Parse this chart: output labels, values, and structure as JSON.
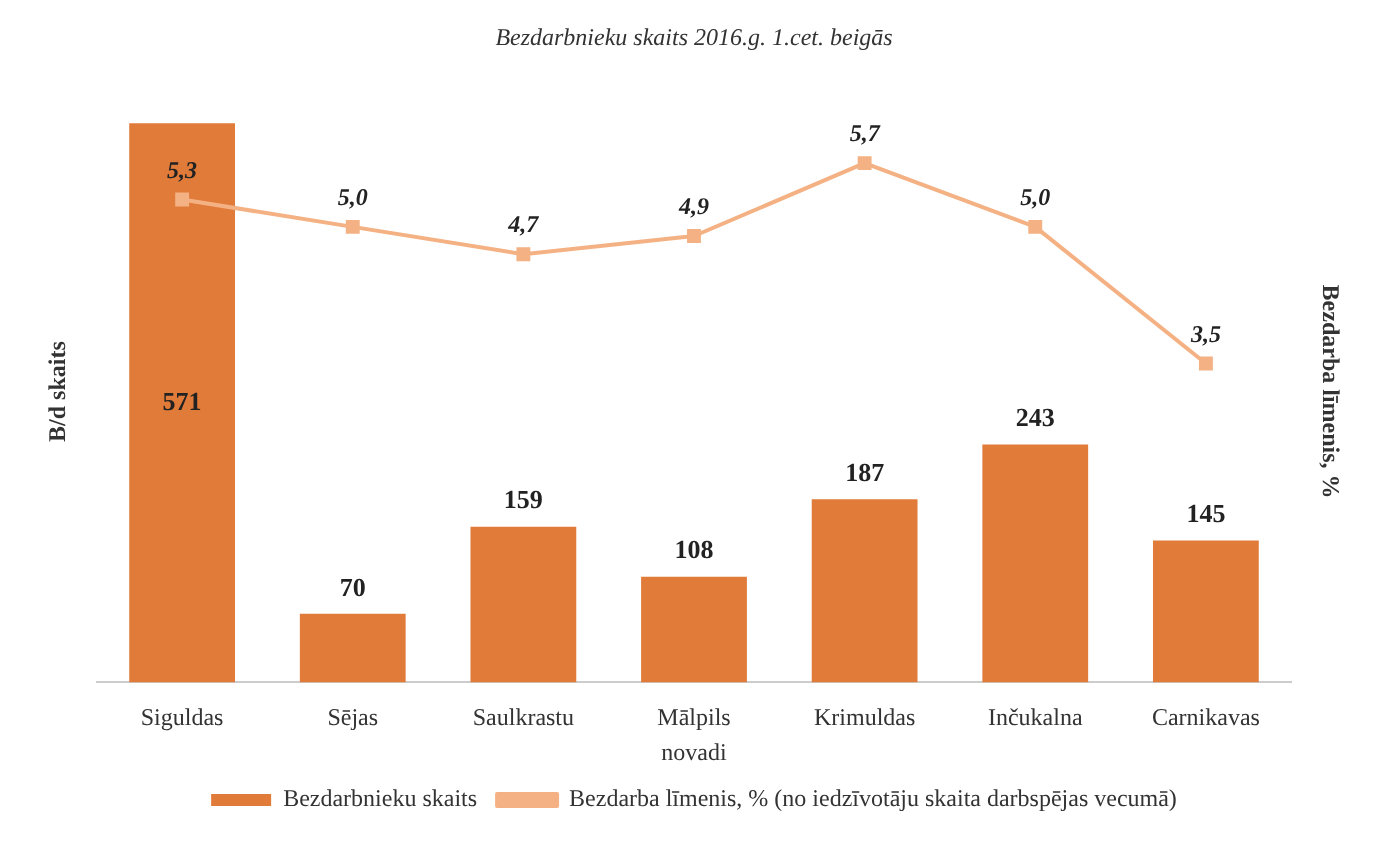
{
  "chart_data": {
    "type": "bar",
    "title": "Bezdarbnieku skaits 2016.g. 1.cet. beigās",
    "xlabel": "novadi",
    "ylabel": "B/d skaits",
    "y2label": "Bezdarba līmenis, %",
    "tick_labels": "x",
    "categories": [
      "Siguldas",
      "Sējas",
      "Saulkrastu",
      "Mālpils",
      "Krimuldas",
      "Inčukalna",
      "Carnikavas"
    ],
    "series": [
      {
        "name": "Bezdarbnieku skaits",
        "color": "#e07b39",
        "values": [
          571,
          70,
          159,
          108,
          187,
          243,
          145
        ],
        "value_labels": [
          "571",
          "70",
          "159",
          "108",
          "187",
          "243",
          "145"
        ]
      },
      {
        "name": "Bezdarba līmenis, % (no iedzīvotāju skaita darbspējas vecumā)",
        "type": "line",
        "axis": "y2",
        "color": "#f4b183",
        "marker": "square",
        "values": [
          5.3,
          5.0,
          4.7,
          4.9,
          5.7,
          5.0,
          3.5
        ],
        "value_labels": [
          "5,3",
          "5,0",
          "4,7",
          "4,9",
          "5,7",
          "5,0",
          "3,5"
        ]
      }
    ],
    "legend": "bottom"
  }
}
